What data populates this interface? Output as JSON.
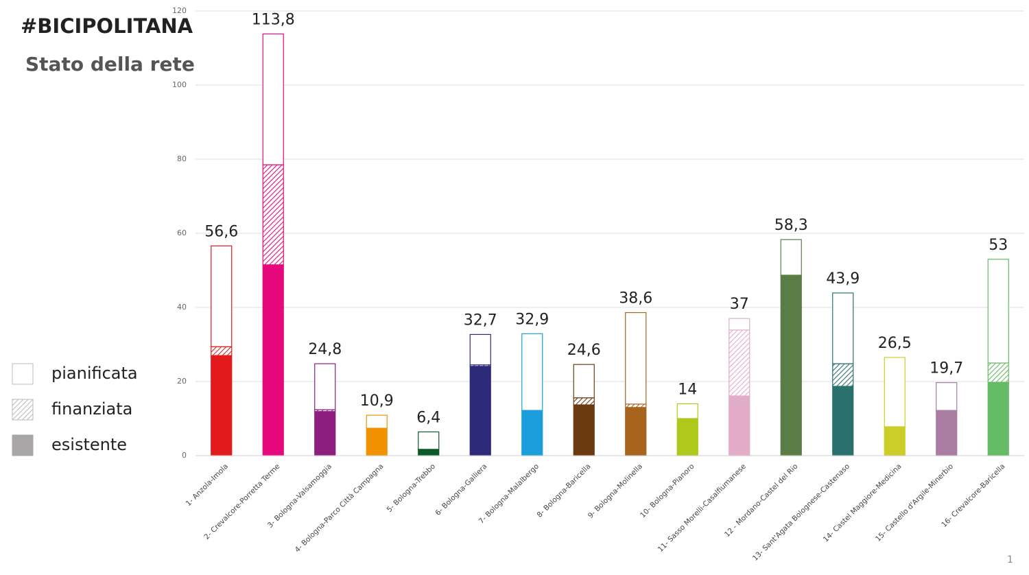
{
  "brand": "#BICIPOLITANA",
  "page_number": "1",
  "chart_data": {
    "type": "stacked-bar",
    "title": "Stato della rete",
    "categories": [
      "1- Anzola-Imola",
      "2- Crevalcore-Porretta Terme",
      "3- Bologna-Valsamoggia",
      "4- Bologna-Parco Città Campagna",
      "5- Bologna-Trebbo",
      "6- Bologna-Galliera",
      "7- Bologna-Malalbergo",
      "8- Bologna-Baricella",
      "9- Bologna-Molinella",
      "10- Bologna-Pianoro",
      "11- Sasso Morelli-Casalfiumanese",
      "12 - Mordano-Castel del Rio",
      "13- Sant'Agata Bolognese-Castenaso",
      "14- Castel Maggiore-Medicina",
      "15- Castello d'Argile-Minerbio",
      "16- Crevalcore-Baricella"
    ],
    "colors": [
      "#e31a1c",
      "#e6097e",
      "#8e1f7e",
      "#f39200",
      "#0b5a2a",
      "#2e2a7a",
      "#1b9edb",
      "#6b3a10",
      "#a8631c",
      "#aec81b",
      "#e2adc8",
      "#5a7d47",
      "#2a706c",
      "#cdcd2a",
      "#a97ca2",
      "#66bb66"
    ],
    "series": [
      {
        "name": "esistente",
        "color": "#a8a6a6",
        "values": [
          27.0,
          51.5,
          11.9,
          7.4,
          1.7,
          24.1,
          12.2,
          13.7,
          13.0,
          10.0,
          16.1,
          48.7,
          18.7,
          7.8,
          12.2,
          19.8
        ]
      },
      {
        "name": "finanziata",
        "color": "#cccccc",
        "values": [
          2.4,
          27.0,
          0.5,
          0,
          0,
          0.4,
          0,
          1.9,
          0.9,
          0,
          17.8,
          0,
          6.1,
          0,
          0,
          5.2
        ]
      },
      {
        "name": "pianificata",
        "color": "#ffffff",
        "values": [
          27.2,
          35.3,
          12.4,
          3.5,
          4.7,
          8.2,
          20.7,
          9.0,
          24.7,
          4.0,
          3.1,
          9.6,
          19.1,
          18.7,
          7.5,
          28.0
        ]
      }
    ],
    "totals": [
      56.6,
      113.8,
      24.8,
      10.9,
      6.4,
      32.7,
      32.9,
      24.6,
      38.6,
      14,
      37,
      58.3,
      43.9,
      26.5,
      19.7,
      53
    ],
    "total_labels": [
      "56,6",
      "113,8",
      "24,8",
      "10,9",
      "6,4",
      "32,7",
      "32,9",
      "24,6",
      "38,6",
      "14",
      "37",
      "58,3",
      "43,9",
      "26,5",
      "19,7",
      "53"
    ],
    "ylim": [
      0,
      120
    ],
    "yticks": [
      0,
      20,
      40,
      60,
      80,
      100,
      120
    ],
    "grid": true
  }
}
